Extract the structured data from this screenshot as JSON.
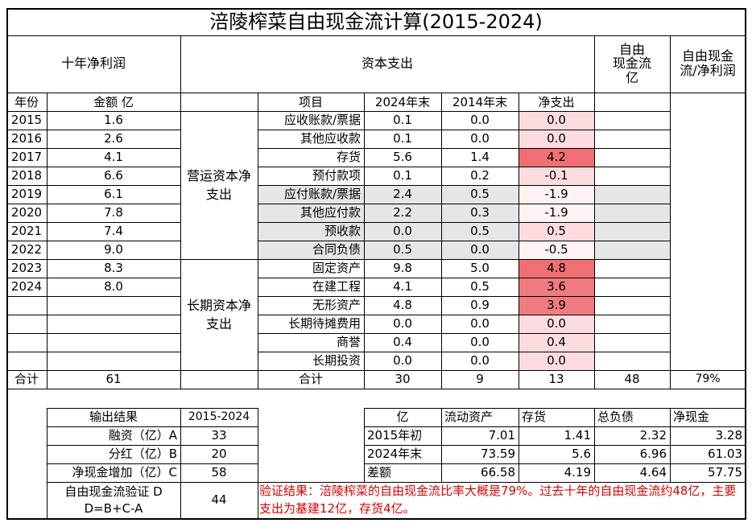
{
  "title": "涪陵榨菜自由现金流计算(2015-2024)",
  "header": {
    "net_profit": "十年净利润",
    "capex": "资本支出",
    "fcf": "自由\n现金流\n亿",
    "ratio": "自由现金\n流/净利润"
  },
  "subheader": {
    "year": "年份",
    "amount": "金额 亿",
    "item": "项目",
    "end2024": "2024年末",
    "end2014": "2014年末",
    "net": "净支出"
  },
  "years": [
    {
      "year": "2015",
      "amount": "1.6"
    },
    {
      "year": "2016",
      "amount": "2.6"
    },
    {
      "year": "2017",
      "amount": "4.1"
    },
    {
      "year": "2018",
      "amount": "6.6"
    },
    {
      "year": "2019",
      "amount": "6.1"
    },
    {
      "year": "2020",
      "amount": "7.8"
    },
    {
      "year": "2021",
      "amount": "7.4"
    },
    {
      "year": "2022",
      "amount": "9.0"
    },
    {
      "year": "2023",
      "amount": "8.3"
    },
    {
      "year": "2024",
      "amount": "8.0"
    }
  ],
  "groups": {
    "working": "营运资本净支出",
    "longterm": "长期资本净支出"
  },
  "items": [
    {
      "name": "应收账款/票据",
      "v2024": "0.1",
      "v2014": "0.0",
      "net": "0.0"
    },
    {
      "name": "其他应收款",
      "v2024": "0.1",
      "v2014": "0.0",
      "net": "0.0"
    },
    {
      "name": "存货",
      "v2024": "5.6",
      "v2014": "1.4",
      "net": "4.2"
    },
    {
      "name": "预付款项",
      "v2024": "0.1",
      "v2014": "0.2",
      "net": "-0.1"
    },
    {
      "name": "应付账款/票据",
      "v2024": "2.4",
      "v2014": "0.5",
      "net": "-1.9"
    },
    {
      "name": "其他应付款",
      "v2024": "2.2",
      "v2014": "0.3",
      "net": "-1.9"
    },
    {
      "name": "预收款",
      "v2024": "0.0",
      "v2014": "0.5",
      "net": "0.5"
    },
    {
      "name": "合同负债",
      "v2024": "0.5",
      "v2014": "0.0",
      "net": "-0.5"
    },
    {
      "name": "固定资产",
      "v2024": "9.8",
      "v2014": "5.0",
      "net": "4.8"
    },
    {
      "name": "在建工程",
      "v2024": "4.1",
      "v2014": "0.5",
      "net": "3.6"
    },
    {
      "name": "无形资产",
      "v2024": "4.8",
      "v2014": "0.9",
      "net": "3.9"
    },
    {
      "name": "长期待摊费用",
      "v2024": "0.0",
      "v2014": "0.0",
      "net": "0.0"
    },
    {
      "name": "商誉",
      "v2024": "0.4",
      "v2014": "0.0",
      "net": "0.4"
    },
    {
      "name": "长期投资",
      "v2024": "0.0",
      "v2014": "0.0",
      "net": "0.0"
    }
  ],
  "totals": {
    "label": "合计",
    "amount": "61",
    "item_label": "合计",
    "v2024": "30",
    "v2014": "9",
    "net": "13",
    "fcf": "48",
    "ratio": "79%"
  },
  "output": {
    "header": "输出结果",
    "period": "2015-2024",
    "rows": [
      {
        "label": "融资（亿）A",
        "value": "33"
      },
      {
        "label": "分红（亿）B",
        "value": "20"
      },
      {
        "label": "净现金增加（亿）C",
        "value": "58"
      }
    ],
    "verify_label": "自由现金流验证 D\nD=B+C-A",
    "verify_value": "44"
  },
  "balance": {
    "headers": [
      "亿",
      "流动资产",
      "存货",
      "总负债",
      "净现金"
    ],
    "rows": [
      [
        "2015年初",
        "7.01",
        "1.41",
        "2.32",
        "3.28"
      ],
      [
        "2024年末",
        "73.59",
        "5.6",
        "6.96",
        "61.03"
      ],
      [
        "差额",
        "66.58",
        "4.19",
        "4.64",
        "57.75"
      ]
    ]
  },
  "conclusion": "验证结果：涪陵榨菜的自由现金流比率大概是79%。过去十年的自由现金流约48亿，主要支出为基建12亿，存货4亿。",
  "colors": {
    "border": "#000000",
    "grey_fill": "#e6e6e6",
    "red_text": "#e00000",
    "pink_light": "#fcdcdf",
    "pink_mid": "#f4a6ab",
    "pink_strong": "#ef6f73"
  }
}
